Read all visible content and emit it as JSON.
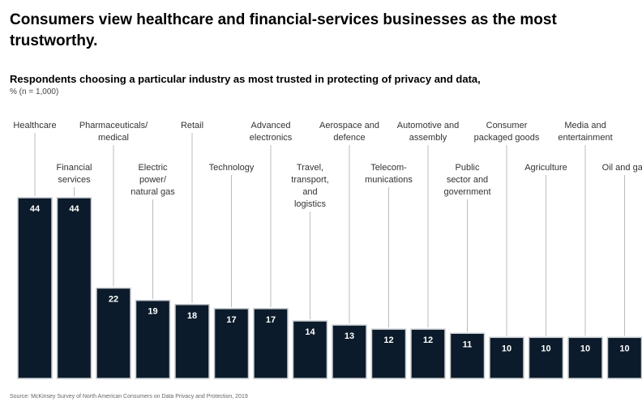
{
  "title": "Consumers view healthcare and financial-services businesses as the most trustworthy.",
  "subtitle": "Respondents choosing a particular industry as most trusted in protecting of privacy and data,",
  "note": "% (n = 1,000)",
  "source": "Source: McKinsey Survey of North American Consumers on Data Privacy and Protection, 2019",
  "colors": {
    "bar": "#0b1b2b",
    "bar_outline": "#c8ccd0",
    "leader": "#b8bcc0"
  },
  "chart_data": {
    "type": "bar",
    "categories": [
      "Healthcare",
      "Financial services",
      "Pharmaceuticals/ medical",
      "Electric power/ natural gas",
      "Retail",
      "Technology",
      "Advanced electronics",
      "Travel, transport, and logistics",
      "Aerospace and defence",
      "Telecom- munications",
      "Automotive and assembly",
      "Public sector and government",
      "Consumer packaged goods",
      "Agriculture",
      "Media and entertainment",
      "Oil and gas"
    ],
    "values": [
      44,
      44,
      22,
      19,
      18,
      17,
      17,
      14,
      13,
      12,
      12,
      11,
      10,
      10,
      10,
      10
    ],
    "ylim": [
      0,
      44
    ],
    "grid": false,
    "legend": "none"
  }
}
